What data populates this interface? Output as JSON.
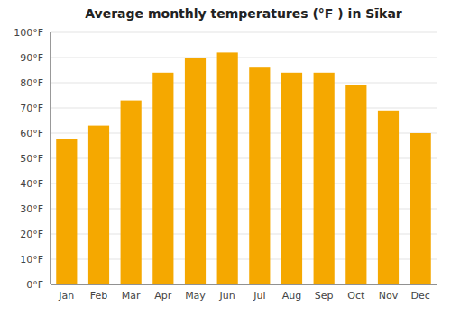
{
  "chart_data": {
    "type": "bar",
    "title": "Average monthly temperatures (°F ) in Sīkar",
    "categories": [
      "Jan",
      "Feb",
      "Mar",
      "Apr",
      "May",
      "Jun",
      "Jul",
      "Aug",
      "Sep",
      "Oct",
      "Nov",
      "Dec"
    ],
    "values": [
      57.5,
      63,
      73,
      84,
      90,
      92,
      86,
      84,
      84,
      79,
      69,
      60
    ],
    "color": "#F5A800",
    "ylim": [
      0,
      100
    ],
    "yticks": [
      {
        "value": 0,
        "label": "0°F"
      },
      {
        "value": 10,
        "label": "10°F"
      },
      {
        "value": 20,
        "label": "20°F"
      },
      {
        "value": 30,
        "label": "30°F"
      },
      {
        "value": 40,
        "label": "40°F"
      },
      {
        "value": 50,
        "label": "50°F"
      },
      {
        "value": 60,
        "label": "60°F"
      },
      {
        "value": 70,
        "label": "70°F"
      },
      {
        "value": 80,
        "label": "80°F"
      },
      {
        "value": 90,
        "label": "90°F"
      },
      {
        "value": 100,
        "label": "100°F"
      }
    ],
    "grid": true
  }
}
